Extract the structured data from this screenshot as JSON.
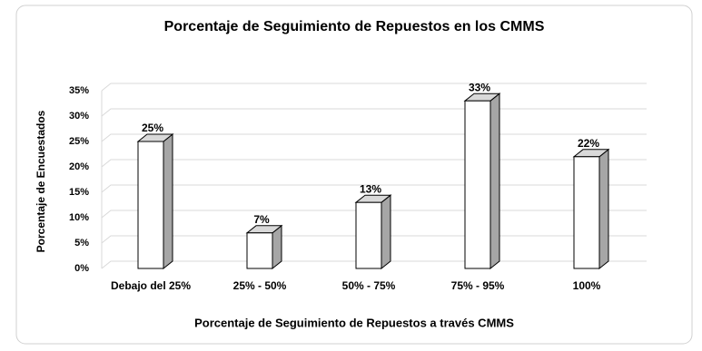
{
  "chart_data": {
    "type": "bar3d",
    "title": "Porcentaje de Seguimiento de Repuestos en los CMMS",
    "x_label": "Porcentaje de Seguimiento de Repuestos a través CMMS",
    "y_label": "Porcentaje de Encuestados",
    "categories": [
      "Debajo del 25%",
      "25% - 50%",
      "50% - 75%",
      "75% - 95%",
      "100%"
    ],
    "values": [
      25,
      7,
      13,
      33,
      22
    ],
    "value_labels": [
      "25%",
      "7%",
      "13%",
      "33%",
      "22%"
    ],
    "color": "#ffffff",
    "side_color": "#a6a6a6",
    "top_color": "#d9d9d9",
    "ylim": [
      0,
      35
    ],
    "yticks": [
      {
        "value": 0,
        "label": "0%"
      },
      {
        "value": 5,
        "label": "5%"
      },
      {
        "value": 10,
        "label": "10%"
      },
      {
        "value": 15,
        "label": "15%"
      },
      {
        "value": 20,
        "label": "20%"
      },
      {
        "value": 25,
        "label": "25%"
      },
      {
        "value": 30,
        "label": "30%"
      },
      {
        "value": 35,
        "label": "35%"
      }
    ],
    "grid": true
  }
}
